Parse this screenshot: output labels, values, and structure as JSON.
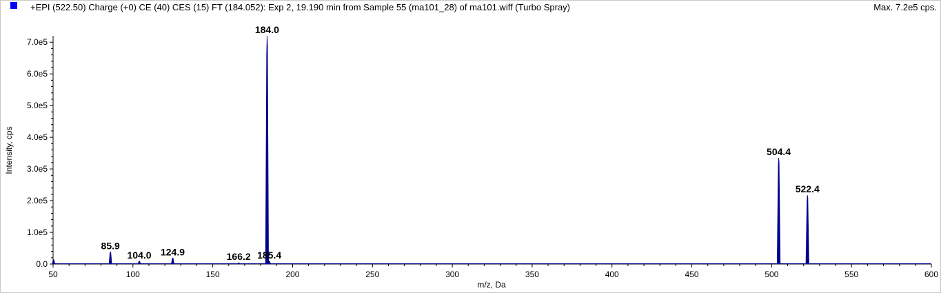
{
  "header": {
    "title": "+EPI (522.50) Charge (+0) CE (40) CES (15) FT (184.052): Exp 2, 19.190 min from Sample 55 (ma101_28) of ma101.wiff (Turbo Spray)",
    "max_label": "Max. 7.2e5 cps.",
    "series_color": "#0000ff"
  },
  "chart_data": {
    "type": "line",
    "title": "",
    "xlabel": "m/z, Da",
    "ylabel": "Intensity, cps",
    "xlim": [
      50,
      600
    ],
    "ylim": [
      0,
      720000
    ],
    "x_ticks": [
      "50",
      "100",
      "150",
      "200",
      "250",
      "300",
      "350",
      "400",
      "450",
      "500",
      "550",
      "600"
    ],
    "y_ticks": [
      "0.0",
      "1.0e5",
      "2.0e5",
      "3.0e5",
      "4.0e5",
      "5.0e5",
      "6.0e5",
      "7.0e5"
    ],
    "grid": false,
    "series_color": "#00008b",
    "peaks": [
      {
        "mz": 50.3,
        "intensity": 14000,
        "label": ""
      },
      {
        "mz": 85.9,
        "intensity": 38000,
        "label": "85.9"
      },
      {
        "mz": 104.0,
        "intensity": 9000,
        "label": "104.0"
      },
      {
        "mz": 124.9,
        "intensity": 19000,
        "label": "124.9"
      },
      {
        "mz": 166.2,
        "intensity": 4000,
        "label": "166.2"
      },
      {
        "mz": 184.0,
        "intensity": 720000,
        "label": "184.0"
      },
      {
        "mz": 185.4,
        "intensity": 9000,
        "label": "185.4"
      },
      {
        "mz": 504.4,
        "intensity": 335000,
        "label": "504.4"
      },
      {
        "mz": 522.4,
        "intensity": 217000,
        "label": "522.4"
      }
    ]
  }
}
